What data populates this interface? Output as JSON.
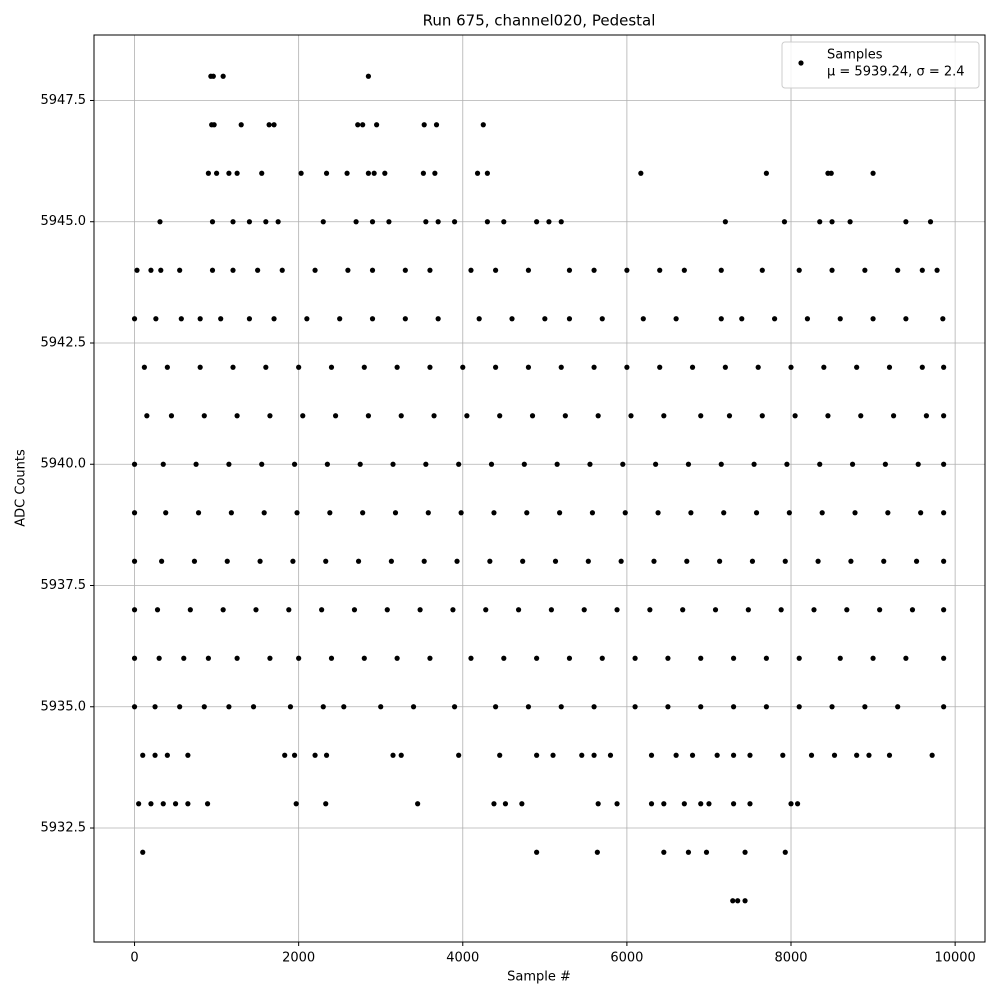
{
  "chart_data": {
    "type": "scatter",
    "title": "Run 675, channel020, Pedestal",
    "x_label": "Sample #",
    "y_label": "ADC Counts",
    "annotation": "μ = 5939.24, σ = 2.4",
    "xlim": [
      -494,
      10364
    ],
    "ylim": [
      5930.15,
      5948.85
    ],
    "xticks": [
      0,
      2000,
      4000,
      6000,
      8000,
      10000
    ],
    "yticks": [
      5932.5,
      {
        "value": 5935,
        "label": "5935.0"
      },
      5937.5,
      {
        "value": 5940,
        "label": "5940.0"
      },
      5942.5,
      {
        "value": 5945,
        "label": "5945.0"
      },
      5947.5
    ],
    "grid": true,
    "legend": "upper right",
    "x": [
      930,
      960,
      1080,
      2850,
      940,
      970,
      1300,
      1640,
      1700,
      2720,
      2780,
      2950,
      3530,
      3680,
      4250,
      900,
      1000,
      1150,
      1250,
      1550,
      2030,
      2340,
      2590,
      2850,
      2920,
      3050,
      3520,
      3660,
      4180,
      4300,
      6170,
      7700,
      8450,
      8490,
      9000,
      310,
      950,
      1200,
      1400,
      1600,
      1750,
      2300,
      2700,
      2900,
      3100,
      3550,
      3700,
      3900,
      4300,
      4500,
      4900,
      5050,
      5200,
      7200,
      7920,
      8350,
      8500,
      8720,
      9400,
      9700,
      30,
      200,
      320,
      550,
      950,
      1200,
      1500,
      1800,
      2200,
      2600,
      2900,
      3300,
      3600,
      4100,
      4400,
      4800,
      5300,
      5600,
      6000,
      6400,
      6700,
      7150,
      7650,
      8100,
      8500,
      8900,
      9300,
      9600,
      9780,
      0,
      260,
      570,
      800,
      1050,
      1400,
      1700,
      2100,
      2500,
      2900,
      3300,
      3700,
      4200,
      4600,
      5000,
      5300,
      5700,
      6200,
      6600,
      7150,
      7400,
      7800,
      8200,
      8600,
      9000,
      9400,
      9850,
      120,
      400,
      800,
      1200,
      1600,
      2000,
      2400,
      2800,
      3200,
      3600,
      4000,
      4400,
      4800,
      5200,
      5600,
      6000,
      6400,
      6800,
      7200,
      7600,
      8000,
      8400,
      8800,
      9200,
      9600,
      9860,
      150,
      450,
      850,
      1250,
      1650,
      2050,
      2450,
      2850,
      3250,
      3650,
      4050,
      4450,
      4850,
      5250,
      5650,
      6050,
      6450,
      6900,
      7250,
      7650,
      8050,
      8450,
      8850,
      9250,
      9650,
      9860,
      0,
      350,
      750,
      1150,
      1550,
      1950,
      2350,
      2750,
      3150,
      3550,
      3950,
      4350,
      4750,
      5150,
      5550,
      5950,
      6350,
      6750,
      7150,
      7550,
      7950,
      8350,
      8750,
      9150,
      9550,
      9860,
      0,
      380,
      780,
      1180,
      1580,
      1980,
      2380,
      2780,
      3180,
      3580,
      3980,
      4380,
      4780,
      5180,
      5580,
      5980,
      6380,
      6780,
      7180,
      7580,
      7980,
      8380,
      8780,
      9180,
      9580,
      9860,
      0,
      330,
      730,
      1130,
      1530,
      1930,
      2330,
      2730,
      3130,
      3530,
      3930,
      4330,
      4730,
      5130,
      5530,
      5930,
      6330,
      6730,
      7130,
      7530,
      7930,
      8330,
      8730,
      9130,
      9530,
      9860,
      0,
      280,
      680,
      1080,
      1480,
      1880,
      2280,
      2680,
      3080,
      3480,
      3880,
      4280,
      4680,
      5080,
      5480,
      5880,
      6280,
      6680,
      7080,
      7480,
      7880,
      8280,
      8680,
      9080,
      9480,
      9860,
      0,
      300,
      600,
      900,
      1250,
      1650,
      2000,
      2400,
      2800,
      3200,
      3600,
      4100,
      4500,
      4900,
      5300,
      5700,
      6100,
      6500,
      6900,
      7300,
      7700,
      8100,
      8600,
      9000,
      9400,
      9860,
      0,
      250,
      550,
      850,
      1150,
      1450,
      1900,
      2300,
      2550,
      3000,
      3400,
      3900,
      4400,
      4800,
      5200,
      5600,
      6100,
      6500,
      6900,
      7300,
      7700,
      8100,
      8500,
      8900,
      9300,
      9860,
      100,
      250,
      400,
      650,
      1830,
      1950,
      2200,
      2340,
      3150,
      3250,
      3950,
      4450,
      4900,
      5100,
      5450,
      5600,
      5800,
      6300,
      6600,
      6800,
      7100,
      7300,
      7500,
      7900,
      8250,
      8530,
      8800,
      8950,
      9200,
      9720,
      50,
      200,
      350,
      500,
      650,
      890,
      1970,
      2330,
      3450,
      4380,
      4520,
      4720,
      5650,
      5880,
      6300,
      6450,
      6700,
      6900,
      7000,
      7300,
      7500,
      8000,
      8080,
      100,
      4900,
      5640,
      6450,
      6750,
      6970,
      7440,
      7930,
      7290,
      7350,
      7440
    ],
    "series": [
      {
        "name": "Samples",
        "color": "#000000",
        "values": [
          5948,
          5948,
          5948,
          5948,
          5947,
          5947,
          5947,
          5947,
          5947,
          5947,
          5947,
          5947,
          5947,
          5947,
          5947,
          5946,
          5946,
          5946,
          5946,
          5946,
          5946,
          5946,
          5946,
          5946,
          5946,
          5946,
          5946,
          5946,
          5946,
          5946,
          5946,
          5946,
          5946,
          5946,
          5946,
          5945,
          5945,
          5945,
          5945,
          5945,
          5945,
          5945,
          5945,
          5945,
          5945,
          5945,
          5945,
          5945,
          5945,
          5945,
          5945,
          5945,
          5945,
          5945,
          5945,
          5945,
          5945,
          5945,
          5945,
          5945,
          5944,
          5944,
          5944,
          5944,
          5944,
          5944,
          5944,
          5944,
          5944,
          5944,
          5944,
          5944,
          5944,
          5944,
          5944,
          5944,
          5944,
          5944,
          5944,
          5944,
          5944,
          5944,
          5944,
          5944,
          5944,
          5944,
          5944,
          5944,
          5944,
          5943,
          5943,
          5943,
          5943,
          5943,
          5943,
          5943,
          5943,
          5943,
          5943,
          5943,
          5943,
          5943,
          5943,
          5943,
          5943,
          5943,
          5943,
          5943,
          5943,
          5943,
          5943,
          5943,
          5943,
          5943,
          5943,
          5943,
          5942,
          5942,
          5942,
          5942,
          5942,
          5942,
          5942,
          5942,
          5942,
          5942,
          5942,
          5942,
          5942,
          5942,
          5942,
          5942,
          5942,
          5942,
          5942,
          5942,
          5942,
          5942,
          5942,
          5942,
          5942,
          5942,
          5941,
          5941,
          5941,
          5941,
          5941,
          5941,
          5941,
          5941,
          5941,
          5941,
          5941,
          5941,
          5941,
          5941,
          5941,
          5941,
          5941,
          5941,
          5941,
          5941,
          5941,
          5941,
          5941,
          5941,
          5941,
          5941,
          5940,
          5940,
          5940,
          5940,
          5940,
          5940,
          5940,
          5940,
          5940,
          5940,
          5940,
          5940,
          5940,
          5940,
          5940,
          5940,
          5940,
          5940,
          5940,
          5940,
          5940,
          5940,
          5940,
          5940,
          5940,
          5940,
          5939,
          5939,
          5939,
          5939,
          5939,
          5939,
          5939,
          5939,
          5939,
          5939,
          5939,
          5939,
          5939,
          5939,
          5939,
          5939,
          5939,
          5939,
          5939,
          5939,
          5939,
          5939,
          5939,
          5939,
          5939,
          5939,
          5938,
          5938,
          5938,
          5938,
          5938,
          5938,
          5938,
          5938,
          5938,
          5938,
          5938,
          5938,
          5938,
          5938,
          5938,
          5938,
          5938,
          5938,
          5938,
          5938,
          5938,
          5938,
          5938,
          5938,
          5938,
          5938,
          5937,
          5937,
          5937,
          5937,
          5937,
          5937,
          5937,
          5937,
          5937,
          5937,
          5937,
          5937,
          5937,
          5937,
          5937,
          5937,
          5937,
          5937,
          5937,
          5937,
          5937,
          5937,
          5937,
          5937,
          5937,
          5937,
          5936,
          5936,
          5936,
          5936,
          5936,
          5936,
          5936,
          5936,
          5936,
          5936,
          5936,
          5936,
          5936,
          5936,
          5936,
          5936,
          5936,
          5936,
          5936,
          5936,
          5936,
          5936,
          5936,
          5936,
          5936,
          5936,
          5935,
          5935,
          5935,
          5935,
          5935,
          5935,
          5935,
          5935,
          5935,
          5935,
          5935,
          5935,
          5935,
          5935,
          5935,
          5935,
          5935,
          5935,
          5935,
          5935,
          5935,
          5935,
          5935,
          5935,
          5935,
          5935,
          5934,
          5934,
          5934,
          5934,
          5934,
          5934,
          5934,
          5934,
          5934,
          5934,
          5934,
          5934,
          5934,
          5934,
          5934,
          5934,
          5934,
          5934,
          5934,
          5934,
          5934,
          5934,
          5934,
          5934,
          5934,
          5934,
          5934,
          5934,
          5934,
          5934,
          5933,
          5933,
          5933,
          5933,
          5933,
          5933,
          5933,
          5933,
          5933,
          5933,
          5933,
          5933,
          5933,
          5933,
          5933,
          5933,
          5933,
          5933,
          5933,
          5933,
          5933,
          5933,
          5933,
          5932,
          5932,
          5932,
          5932,
          5932,
          5932,
          5932,
          5932,
          5931,
          5931,
          5931
        ]
      }
    ]
  }
}
